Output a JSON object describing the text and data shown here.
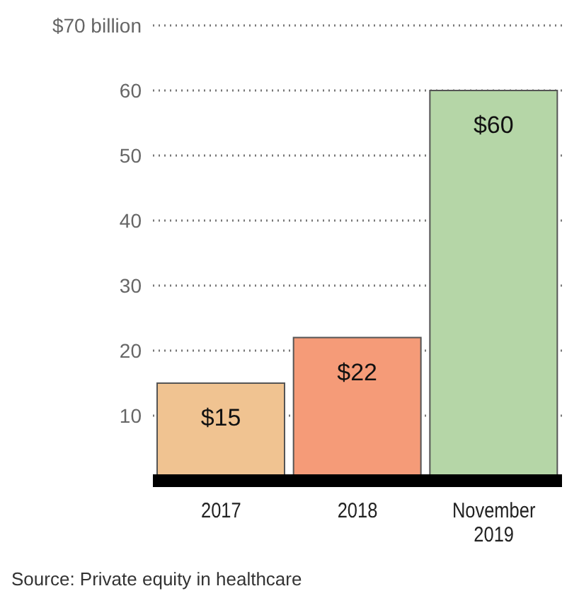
{
  "chart_data": {
    "type": "bar",
    "categories": [
      "2017",
      "2018",
      "November 2019"
    ],
    "values": [
      15,
      22,
      60
    ],
    "colors": [
      "#f0c391",
      "#f59b78",
      "#b5d6a7"
    ],
    "value_labels": [
      "$15",
      "$22",
      "$60"
    ],
    "ylim": [
      0,
      70
    ],
    "yticks": [
      10,
      20,
      30,
      40,
      50,
      60,
      {
        "value": 70,
        "label": "$70 billion"
      }
    ],
    "grid": "y",
    "annotations": [
      "Source: Private equity in healthcare"
    ]
  }
}
